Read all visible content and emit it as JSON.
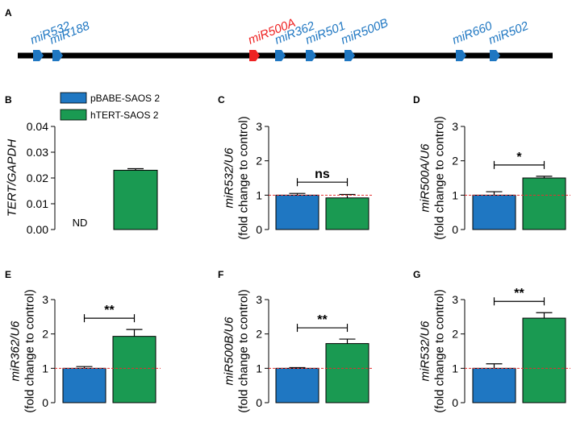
{
  "panels": {
    "A": {
      "letter": "A"
    },
    "B": {
      "letter": "B"
    },
    "C": {
      "letter": "C"
    },
    "D": {
      "letter": "D"
    },
    "E": {
      "letter": "E"
    },
    "F": {
      "letter": "F"
    },
    "G": {
      "letter": "G"
    }
  },
  "colors": {
    "control": "#1f77c2",
    "treated": "#1a9a52",
    "highlight": "#ee2222",
    "text_blue": "#1f77c2",
    "reference_line": "#e23030"
  },
  "chart_data": [
    {
      "panel": "A",
      "type": "diagram",
      "genes": [
        {
          "name": "miR532",
          "highlight": false
        },
        {
          "name": "miR188",
          "highlight": false
        },
        {
          "name": "miR500A",
          "highlight": true
        },
        {
          "name": "miR362",
          "highlight": false
        },
        {
          "name": "miR501",
          "highlight": false
        },
        {
          "name": "miR500B",
          "highlight": false
        },
        {
          "name": "miR660",
          "highlight": false
        },
        {
          "name": "miR502",
          "highlight": false
        }
      ]
    },
    {
      "panel": "B",
      "type": "bar",
      "ylabel": "TERT/GAPDH",
      "ylim": [
        0,
        0.04
      ],
      "yticks": [
        "0.00",
        "0.01",
        "0.02",
        "0.03",
        "0.04"
      ],
      "legend": [
        "pBABE-SAOS 2",
        "hTERT-SAOS 2"
      ],
      "series": [
        {
          "name": "pBABE-SAOS 2",
          "values": [
            0
          ]
        },
        {
          "name": "hTERT-SAOS 2",
          "values": [
            0.023
          ],
          "error": 0.0006
        }
      ],
      "annotation": "ND",
      "reference_line": null,
      "significance": ""
    },
    {
      "panel": "C",
      "type": "bar",
      "ylabel": "miR532/U6",
      "ylabel2": "(fold change to control)",
      "ylim": [
        0,
        3
      ],
      "yticks": [
        "0",
        "1",
        "2",
        "3"
      ],
      "series": [
        {
          "name": "pBABE-SAOS 2",
          "values": [
            1.0
          ],
          "error": 0.05
        },
        {
          "name": "hTERT-SAOS 2",
          "values": [
            0.92
          ],
          "error": 0.1
        }
      ],
      "reference_line": 1,
      "significance": "ns"
    },
    {
      "panel": "D",
      "type": "bar",
      "ylabel": "miR500A/U6",
      "ylabel2": "(fold change to control)",
      "ylim": [
        0,
        3
      ],
      "yticks": [
        "0",
        "1",
        "2",
        "3"
      ],
      "series": [
        {
          "name": "pBABE-SAOS 2",
          "values": [
            1.0
          ],
          "error": 0.1
        },
        {
          "name": "hTERT-SAOS 2",
          "values": [
            1.5
          ],
          "error": 0.05
        }
      ],
      "reference_line": 1,
      "significance": "*"
    },
    {
      "panel": "E",
      "type": "bar",
      "ylabel": "miR362/U6",
      "ylabel2": "(fold change to control)",
      "ylim": [
        0,
        3
      ],
      "yticks": [
        "0",
        "1",
        "2",
        "3"
      ],
      "series": [
        {
          "name": "pBABE-SAOS 2",
          "values": [
            1.0
          ],
          "error": 0.05
        },
        {
          "name": "hTERT-SAOS 2",
          "values": [
            1.93
          ],
          "error": 0.2
        }
      ],
      "reference_line": 1,
      "significance": "**"
    },
    {
      "panel": "F",
      "type": "bar",
      "ylabel": "miR500B/U6",
      "ylabel2": "(fold change to control)",
      "ylim": [
        0,
        3
      ],
      "yticks": [
        "0",
        "1",
        "2",
        "3"
      ],
      "series": [
        {
          "name": "pBABE-SAOS 2",
          "values": [
            1.0
          ],
          "error": 0.02
        },
        {
          "name": "hTERT-SAOS 2",
          "values": [
            1.72
          ],
          "error": 0.13
        }
      ],
      "reference_line": 1,
      "significance": "**"
    },
    {
      "panel": "G",
      "type": "bar",
      "ylabel": "miR532/U6",
      "ylabel2": "(fold change to control)",
      "ylim": [
        0,
        3
      ],
      "yticks": [
        "0",
        "1",
        "2",
        "3"
      ],
      "series": [
        {
          "name": "pBABE-SAOS 2",
          "values": [
            1.0
          ],
          "error": 0.13
        },
        {
          "name": "hTERT-SAOS 2",
          "values": [
            2.46
          ],
          "error": 0.16
        }
      ],
      "reference_line": 1,
      "significance": "**"
    }
  ]
}
